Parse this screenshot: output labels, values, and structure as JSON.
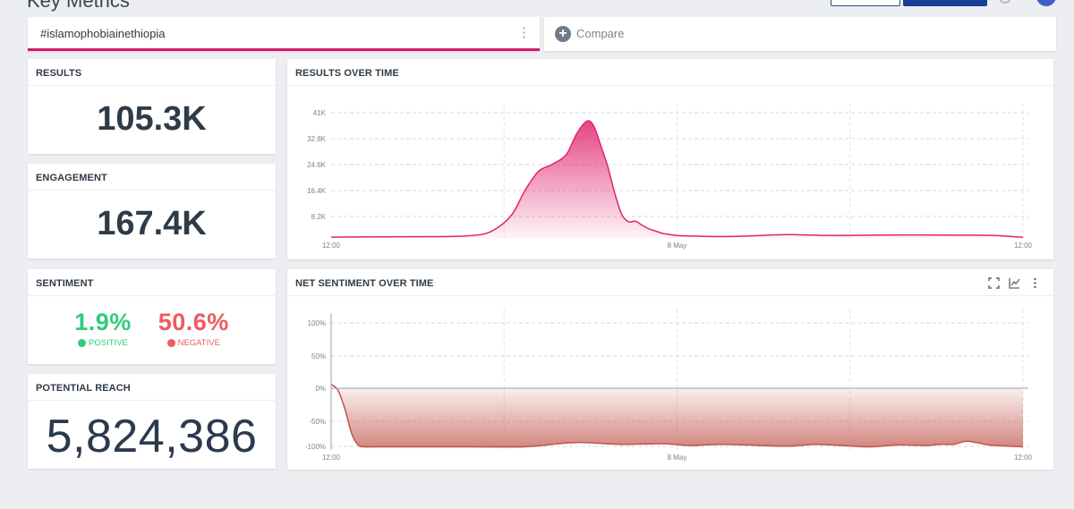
{
  "header": {
    "title": "Key Metrics"
  },
  "query": {
    "text": "#islamophobiainethiopia",
    "menu_glyph": "⋮"
  },
  "compare": {
    "icon": "plus-circle-icon",
    "label": "Compare"
  },
  "results": {
    "title": "RESULTS",
    "value": "105.3K"
  },
  "engagement": {
    "title": "ENGAGEMENT",
    "value": "167.4K"
  },
  "sentiment": {
    "title": "SENTIMENT",
    "positive": {
      "value": "1.9%",
      "label": "POSITIVE",
      "color": "#2fcc7a"
    },
    "negative": {
      "value": "50.6%",
      "label": "NEGATIVE",
      "color": "#ee5a63"
    }
  },
  "reach": {
    "title": "POTENTIAL REACH",
    "value": "5,824,386"
  },
  "results_chart": {
    "title": "RESULTS OVER TIME"
  },
  "sentiment_chart": {
    "title": "NET SENTIMENT OVER TIME"
  },
  "chart_data": [
    {
      "type": "area",
      "title": "RESULTS OVER TIME",
      "yticks": [
        "41K",
        "32.8K",
        "24.6K",
        "16.4K",
        "8.2K"
      ],
      "xticks": [
        "12:00",
        "8 May",
        "12:00"
      ],
      "ylim": [
        0,
        45000
      ],
      "color": "#e0246e",
      "x": [
        0,
        0.08,
        0.16,
        0.2,
        0.23,
        0.26,
        0.28,
        0.3,
        0.32,
        0.34,
        0.355,
        0.37,
        0.38,
        0.39,
        0.4,
        0.41,
        0.42,
        0.43,
        0.44,
        0.45,
        0.46,
        0.47,
        0.48,
        0.5,
        0.52,
        0.56,
        0.6,
        0.66,
        0.72,
        0.78,
        0.84,
        0.9,
        0.96,
        1.0
      ],
      "y": [
        300,
        400,
        500,
        800,
        2200,
        8000,
        17000,
        24000,
        26500,
        30000,
        37500,
        42000,
        40000,
        33000,
        25500,
        16000,
        8500,
        5800,
        6000,
        4500,
        3200,
        2400,
        1600,
        900,
        700,
        500,
        700,
        1200,
        900,
        1000,
        1100,
        1000,
        900,
        200
      ],
      "grid": true
    },
    {
      "type": "area",
      "title": "NET SENTIMENT OVER TIME",
      "yticks": [
        "100%",
        "50%",
        "0%",
        "-50%",
        "-100%"
      ],
      "xticks": [
        "12:00",
        "8 May",
        "12:00"
      ],
      "ylim": [
        -105,
        105
      ],
      "color": "#c0544a",
      "x": [
        0,
        0.01,
        0.02,
        0.03,
        0.04,
        0.05,
        0.06,
        0.1,
        0.2,
        0.28,
        0.32,
        0.36,
        0.42,
        0.48,
        0.52,
        0.56,
        0.6,
        0.66,
        0.7,
        0.74,
        0.78,
        0.82,
        0.86,
        0.88,
        0.9,
        0.92,
        0.95,
        0.98,
        1.0
      ],
      "y": [
        0,
        -10,
        -40,
        -80,
        -98,
        -100,
        -100,
        -100,
        -100,
        -100,
        -96,
        -93,
        -96,
        -95,
        -98,
        -96,
        -97,
        -99,
        -96,
        -98,
        -100,
        -97,
        -98,
        -96,
        -96,
        -91,
        -97,
        -99,
        -100
      ],
      "grid": true
    }
  ]
}
